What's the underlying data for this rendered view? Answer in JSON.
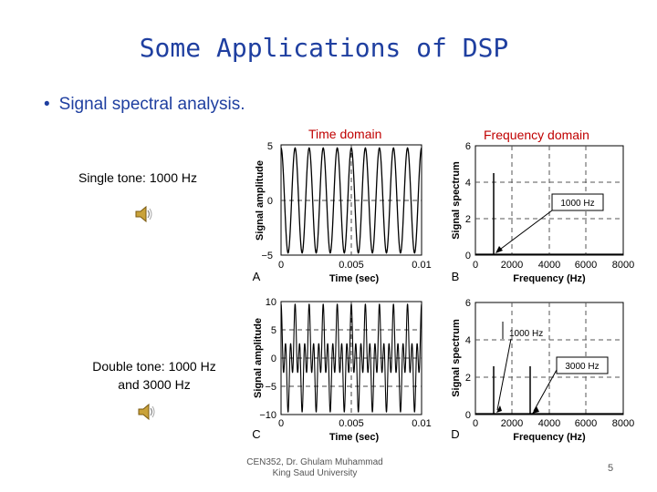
{
  "title": "Some Applications of DSP",
  "bullet": "Signal spectral analysis.",
  "headers": {
    "time": "Time domain",
    "frequency": "Frequency domain"
  },
  "rows": [
    {
      "label_lines": [
        "Single tone: 1000 Hz"
      ]
    },
    {
      "label_lines": [
        "Double tone: 1000 Hz",
        "and 3000 Hz"
      ]
    }
  ],
  "plots": {
    "A": {
      "letter": "A",
      "ylabel": "Signal amplitude",
      "xlabel": "Time (sec)",
      "yticks": [
        "5",
        "0",
        "−5"
      ],
      "xticks": [
        "0",
        "0.005",
        "0.01"
      ]
    },
    "B": {
      "letter": "B",
      "ylabel": "Signal spectrum",
      "xlabel": "Frequency (Hz)",
      "yticks": [
        "6",
        "4",
        "2",
        "0"
      ],
      "xticks": [
        "0",
        "2000",
        "4000",
        "6000",
        "8000"
      ],
      "annotation": "1000 Hz"
    },
    "C": {
      "letter": "C",
      "ylabel": "Signal amplitude",
      "xlabel": "Time (sec)",
      "yticks": [
        "10",
        "5",
        "0",
        "−5",
        "−10"
      ],
      "xticks": [
        "0",
        "0.005",
        "0.01"
      ]
    },
    "D": {
      "letter": "D",
      "ylabel": "Signal spectrum",
      "xlabel": "Frequency (Hz)",
      "yticks": [
        "6",
        "4",
        "2",
        "0"
      ],
      "xticks": [
        "0",
        "2000",
        "4000",
        "6000",
        "8000"
      ],
      "annotation1": "1000 Hz",
      "annotation2": "3000 Hz"
    }
  },
  "footer": {
    "line1": "CEN352, Dr. Ghulam Muhammad",
    "line2": "King Saud University"
  },
  "page_number": "5"
}
